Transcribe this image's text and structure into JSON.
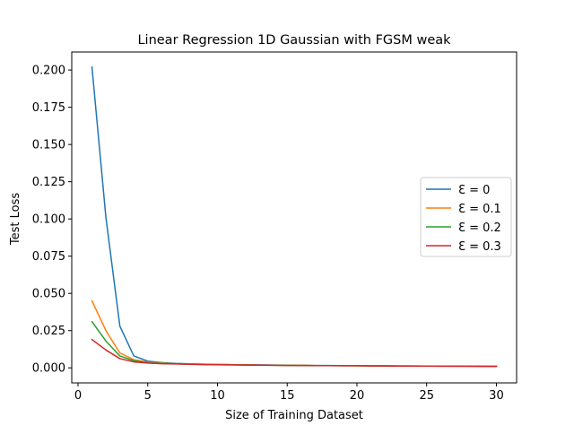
{
  "chart_data": {
    "type": "line",
    "title": "Linear Regression 1D Gaussian with FGSM weak",
    "xlabel": "Size of Training Dataset",
    "ylabel": "Test Loss",
    "xlim": [
      -0.45,
      31.45
    ],
    "ylim": [
      -0.0101,
      0.2121
    ],
    "xticks": [
      0,
      5,
      10,
      15,
      20,
      25,
      30
    ],
    "yticks": [
      0.0,
      0.025,
      0.05,
      0.075,
      0.1,
      0.125,
      0.15,
      0.175,
      0.2
    ],
    "xtick_labels": [
      "0",
      "5",
      "10",
      "15",
      "20",
      "25",
      "30"
    ],
    "ytick_labels": [
      "0.000",
      "0.025",
      "0.050",
      "0.075",
      "0.100",
      "0.125",
      "0.150",
      "0.175",
      "0.200"
    ],
    "grid": false,
    "legend_position": "center-right",
    "x": [
      1,
      2,
      3,
      4,
      5,
      6,
      7,
      8,
      9,
      10,
      11,
      12,
      13,
      14,
      15,
      16,
      17,
      18,
      19,
      20,
      21,
      22,
      23,
      24,
      25,
      26,
      27,
      28,
      29,
      30
    ],
    "series": [
      {
        "name": "Ɛ = 0",
        "color": "#1f77b4",
        "values": [
          0.202,
          0.101,
          0.028,
          0.008,
          0.0045,
          0.0035,
          0.003,
          0.0027,
          0.0025,
          0.0023,
          0.0022,
          0.0021,
          0.002,
          0.0019,
          0.0018,
          0.0017,
          0.0016,
          0.0016,
          0.0015,
          0.0015,
          0.0014,
          0.0014,
          0.0013,
          0.0013,
          0.0012,
          0.0012,
          0.0012,
          0.0011,
          0.0011,
          0.0011
        ]
      },
      {
        "name": "Ɛ = 0.1",
        "color": "#ff7f0e",
        "values": [
          0.045,
          0.025,
          0.01,
          0.0055,
          0.0038,
          0.0032,
          0.0028,
          0.0026,
          0.0024,
          0.0022,
          0.0021,
          0.002,
          0.0019,
          0.0018,
          0.0017,
          0.0017,
          0.0016,
          0.0015,
          0.0015,
          0.0014,
          0.0014,
          0.0013,
          0.0013,
          0.0013,
          0.0012,
          0.0012,
          0.0011,
          0.0011,
          0.0011,
          0.0011
        ]
      },
      {
        "name": "Ɛ = 0.2",
        "color": "#2ca02c",
        "values": [
          0.031,
          0.018,
          0.008,
          0.0048,
          0.0035,
          0.003,
          0.0027,
          0.0025,
          0.0023,
          0.0021,
          0.002,
          0.0019,
          0.0018,
          0.0017,
          0.0017,
          0.0016,
          0.0015,
          0.0015,
          0.0014,
          0.0014,
          0.0013,
          0.0013,
          0.0013,
          0.0012,
          0.0012,
          0.0011,
          0.0011,
          0.0011,
          0.0011,
          0.001
        ]
      },
      {
        "name": "Ɛ = 0.3",
        "color": "#d62728",
        "values": [
          0.019,
          0.012,
          0.0062,
          0.004,
          0.0032,
          0.0028,
          0.0026,
          0.0024,
          0.0022,
          0.0021,
          0.002,
          0.0019,
          0.0018,
          0.0017,
          0.0016,
          0.0016,
          0.0015,
          0.0015,
          0.0014,
          0.0014,
          0.0013,
          0.0013,
          0.0012,
          0.0012,
          0.0012,
          0.0011,
          0.0011,
          0.0011,
          0.001,
          0.001
        ]
      }
    ]
  }
}
